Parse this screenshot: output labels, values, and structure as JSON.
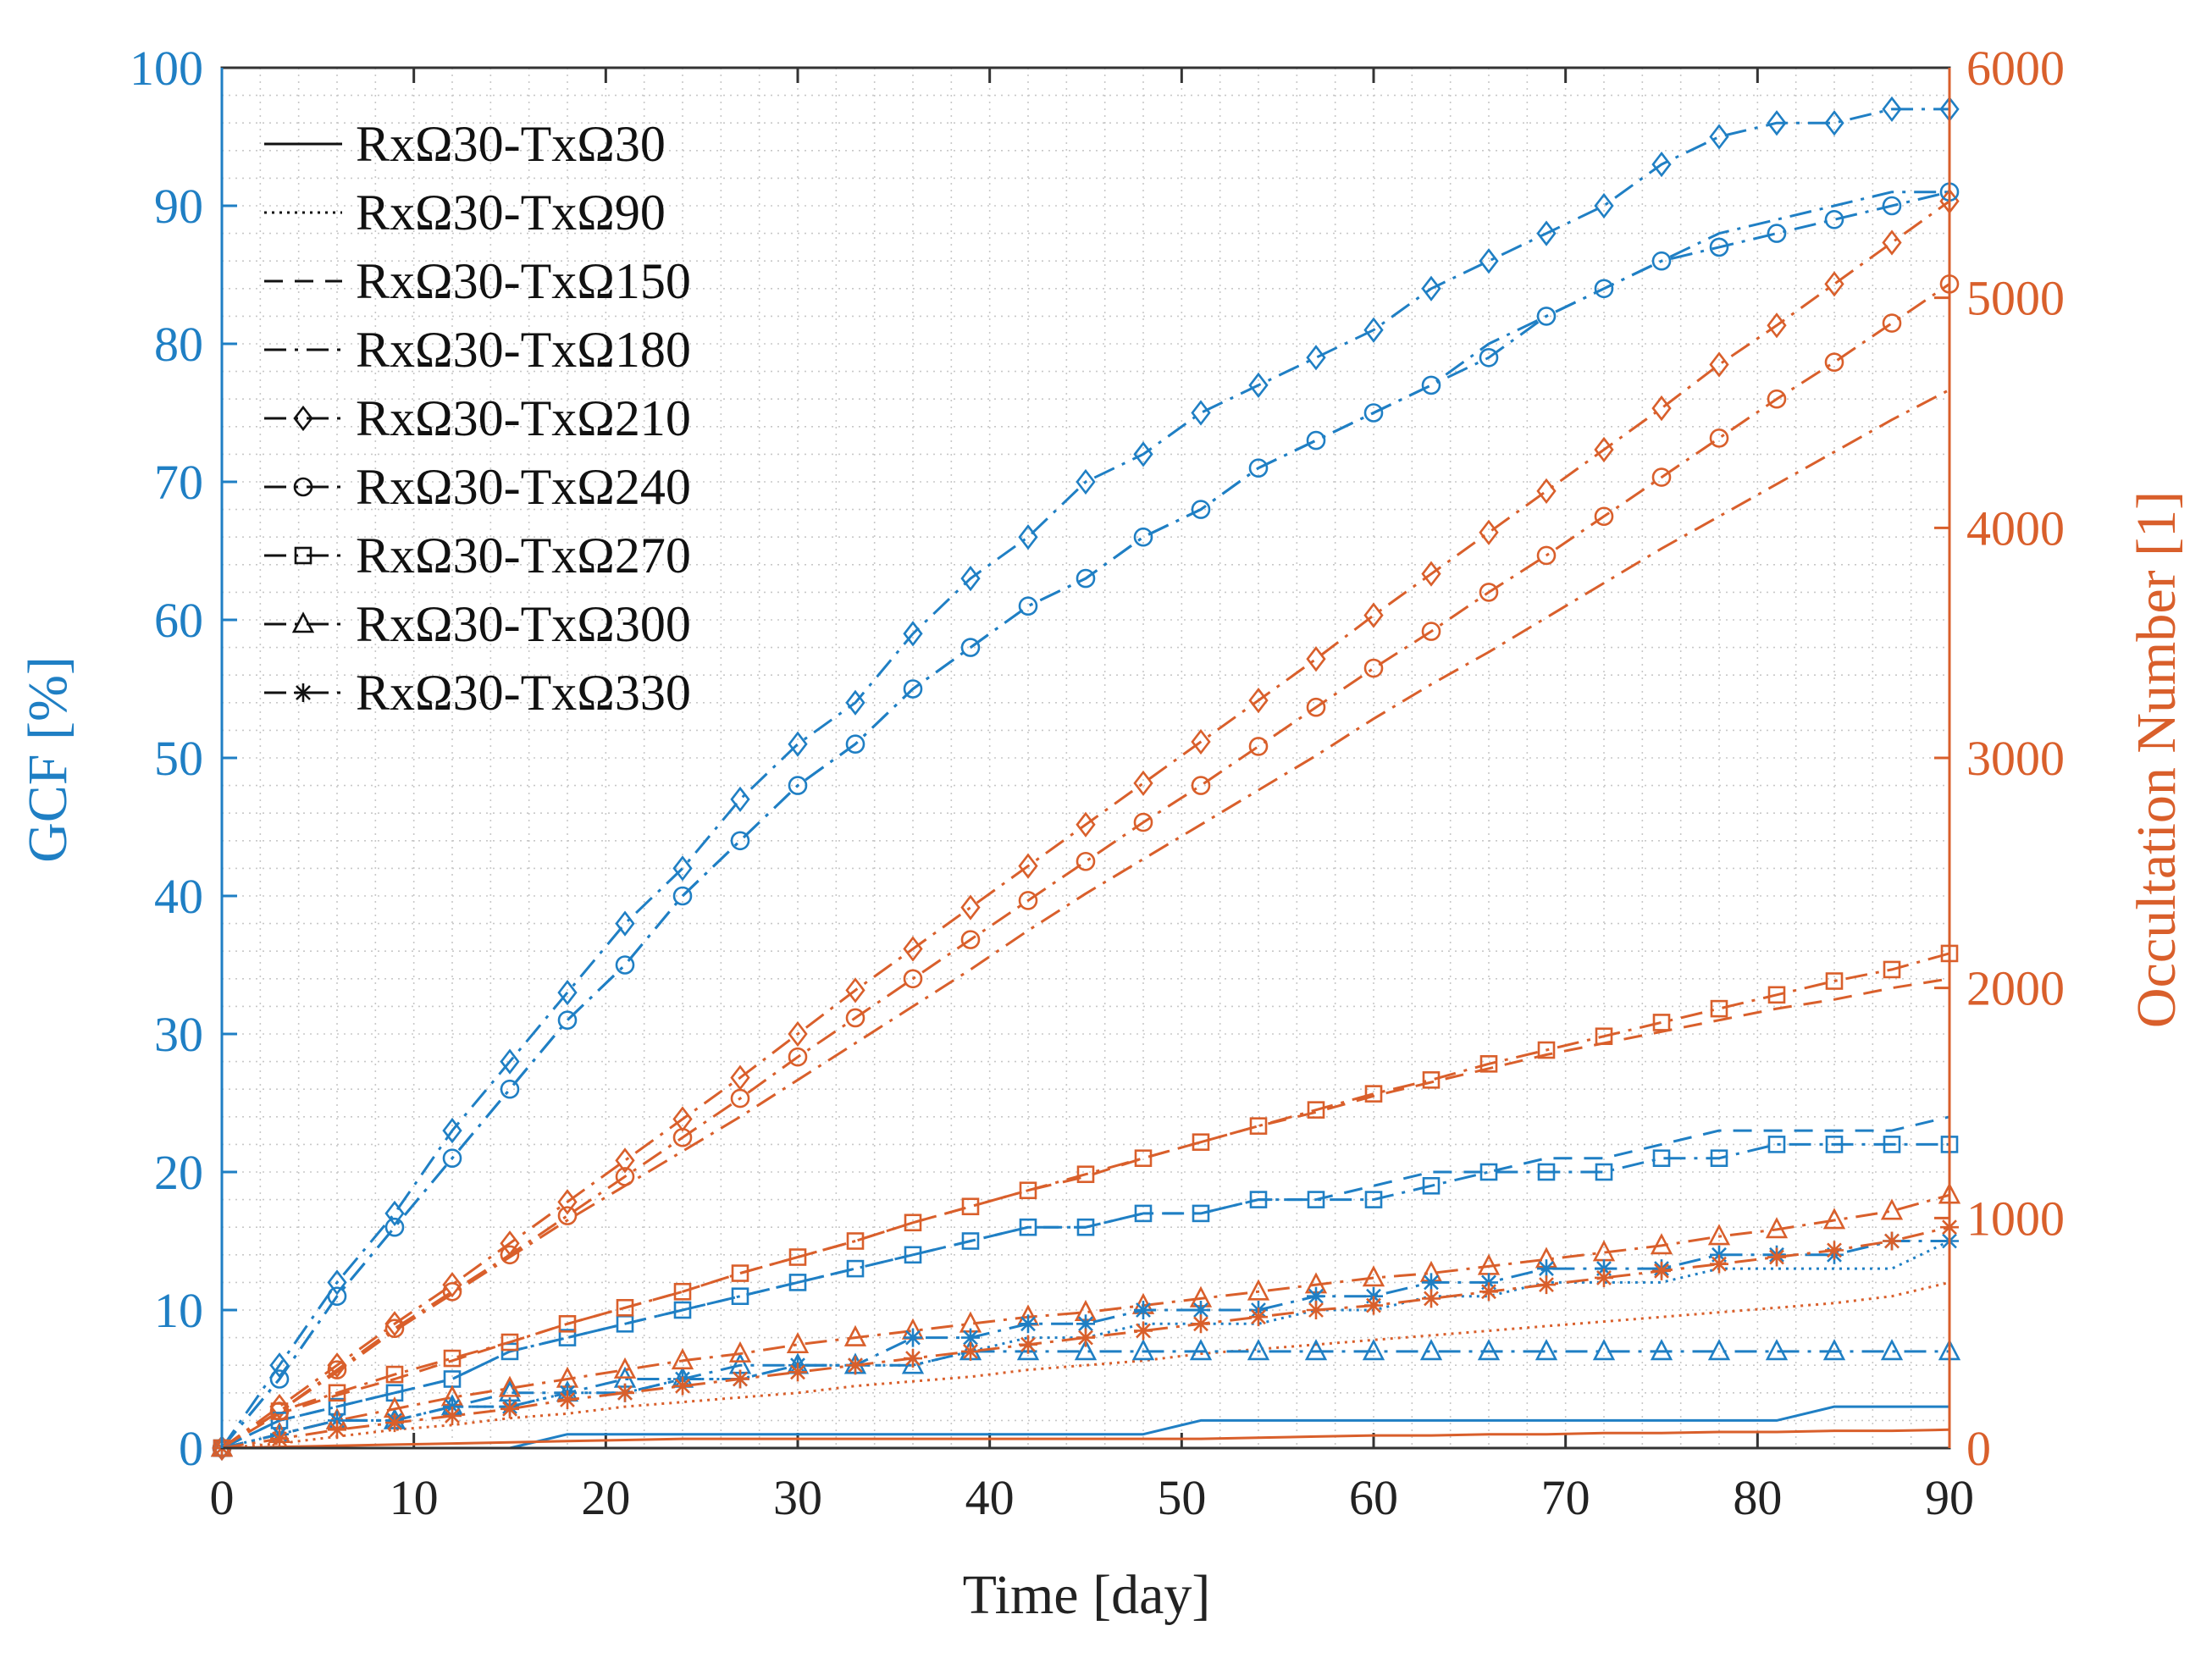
{
  "chart_data": {
    "type": "line",
    "xlabel": "Time [day]",
    "ylabel_left": "GCF [%]",
    "ylabel_right": "Occultation Number [1]",
    "xlim": [
      0,
      90
    ],
    "ylim_left": [
      0,
      100
    ],
    "ylim_right": [
      0,
      6000
    ],
    "xticks": [
      "0",
      "10",
      "20",
      "30",
      "40",
      "50",
      "60",
      "70",
      "80",
      "90"
    ],
    "yticks_left": [
      "0",
      "10",
      "20",
      "30",
      "40",
      "50",
      "60",
      "70",
      "80",
      "90",
      "100"
    ],
    "yticks_right": [
      "0",
      "1000",
      "2000",
      "3000",
      "4000",
      "5000",
      "6000"
    ],
    "grid": "minor dotted",
    "legend_position": "top-left",
    "colors": {
      "left": "#1f7fc4",
      "right": "#d95f2b"
    },
    "x": [
      0,
      3,
      6,
      9,
      12,
      15,
      18,
      21,
      24,
      27,
      30,
      33,
      36,
      39,
      42,
      45,
      48,
      51,
      54,
      57,
      60,
      63,
      66,
      69,
      72,
      75,
      78,
      81,
      84,
      87,
      90
    ],
    "series": [
      {
        "name": "RxΩ30-TxΩ30",
        "style": "solid",
        "marker": "none",
        "gcf": [
          0,
          0,
          0,
          0,
          0,
          0,
          1,
          1,
          1,
          1,
          1,
          1,
          1,
          1,
          1,
          1,
          1,
          2,
          2,
          2,
          2,
          2,
          2,
          2,
          2,
          2,
          2,
          2,
          3,
          3,
          3
        ],
        "occultation": [
          0,
          5,
          10,
          15,
          20,
          25,
          30,
          35,
          40,
          40,
          40,
          40,
          40,
          40,
          40,
          40,
          40,
          40,
          45,
          50,
          55,
          55,
          60,
          60,
          65,
          65,
          70,
          70,
          75,
          75,
          80
        ]
      },
      {
        "name": "RxΩ30-TxΩ90",
        "style": "dotted",
        "marker": "none",
        "gcf": [
          0,
          1,
          2,
          2,
          3,
          3,
          4,
          4,
          5,
          5,
          6,
          6,
          6,
          7,
          8,
          8,
          9,
          9,
          9,
          10,
          10,
          11,
          11,
          12,
          12,
          12,
          13,
          13,
          13,
          13,
          15
        ],
        "occultation": [
          0,
          20,
          50,
          80,
          100,
          130,
          150,
          180,
          200,
          220,
          240,
          270,
          290,
          310,
          340,
          360,
          380,
          410,
          430,
          450,
          470,
          490,
          510,
          530,
          550,
          570,
          590,
          610,
          630,
          660,
          720
        ]
      },
      {
        "name": "RxΩ30-TxΩ150",
        "style": "dashed",
        "marker": "none",
        "gcf": [
          0,
          2,
          3,
          4,
          5,
          7,
          8,
          9,
          10,
          11,
          12,
          13,
          14,
          15,
          16,
          16,
          17,
          17,
          18,
          18,
          19,
          20,
          20,
          21,
          21,
          22,
          23,
          23,
          23,
          23,
          24
        ],
        "occultation": [
          0,
          150,
          230,
          300,
          380,
          460,
          540,
          610,
          680,
          760,
          830,
          900,
          980,
          1050,
          1120,
          1180,
          1260,
          1330,
          1400,
          1460,
          1530,
          1590,
          1650,
          1710,
          1760,
          1810,
          1860,
          1910,
          1950,
          2000,
          2040
        ]
      },
      {
        "name": "RxΩ30-TxΩ180",
        "style": "dashdot",
        "marker": "none",
        "gcf": [
          0,
          5,
          11,
          16,
          21,
          26,
          31,
          35,
          40,
          44,
          48,
          51,
          55,
          58,
          61,
          63,
          66,
          68,
          71,
          73,
          75,
          77,
          80,
          82,
          84,
          86,
          88,
          89,
          90,
          91,
          91
        ],
        "occultation": [
          0,
          160,
          330,
          510,
          670,
          830,
          990,
          1140,
          1290,
          1440,
          1600,
          1760,
          1920,
          2080,
          2250,
          2410,
          2560,
          2710,
          2860,
          3010,
          3170,
          3320,
          3460,
          3610,
          3760,
          3910,
          4050,
          4190,
          4330,
          4470,
          4600
        ]
      },
      {
        "name": "RxΩ30-TxΩ210",
        "style": "dashdot",
        "marker": "diamond",
        "gcf": [
          0,
          6,
          12,
          17,
          23,
          28,
          33,
          38,
          42,
          47,
          51,
          54,
          59,
          63,
          66,
          70,
          72,
          75,
          77,
          79,
          81,
          84,
          86,
          88,
          90,
          93,
          95,
          96,
          96,
          97,
          97
        ],
        "occultation": [
          0,
          180,
          360,
          540,
          710,
          890,
          1070,
          1250,
          1430,
          1610,
          1800,
          1990,
          2170,
          2350,
          2530,
          2710,
          2890,
          3070,
          3250,
          3430,
          3620,
          3800,
          3980,
          4160,
          4340,
          4520,
          4710,
          4880,
          5060,
          5240,
          5420
        ]
      },
      {
        "name": "RxΩ30-TxΩ240",
        "style": "dashdot",
        "marker": "circle",
        "gcf": [
          0,
          5,
          11,
          16,
          21,
          26,
          31,
          35,
          40,
          44,
          48,
          51,
          55,
          58,
          61,
          63,
          66,
          68,
          71,
          73,
          75,
          77,
          79,
          82,
          84,
          86,
          87,
          88,
          89,
          90,
          91
        ],
        "occultation": [
          0,
          160,
          340,
          520,
          680,
          840,
          1010,
          1180,
          1350,
          1520,
          1700,
          1870,
          2040,
          2210,
          2380,
          2550,
          2720,
          2880,
          3050,
          3220,
          3390,
          3550,
          3720,
          3880,
          4050,
          4220,
          4390,
          4560,
          4720,
          4890,
          5060
        ]
      },
      {
        "name": "RxΩ30-TxΩ270",
        "style": "dashdot",
        "marker": "square",
        "gcf": [
          0,
          2,
          3,
          4,
          5,
          7,
          8,
          9,
          10,
          11,
          12,
          13,
          14,
          15,
          16,
          16,
          17,
          17,
          18,
          18,
          18,
          19,
          20,
          20,
          20,
          21,
          21,
          22,
          22,
          22,
          22
        ],
        "occultation": [
          0,
          160,
          240,
          320,
          390,
          460,
          540,
          610,
          680,
          760,
          830,
          900,
          980,
          1050,
          1120,
          1190,
          1260,
          1330,
          1400,
          1470,
          1540,
          1600,
          1670,
          1730,
          1790,
          1850,
          1910,
          1970,
          2030,
          2080,
          2150
        ]
      },
      {
        "name": "RxΩ30-TxΩ300",
        "style": "dashdot",
        "marker": "triangle",
        "gcf": [
          0,
          1,
          2,
          2,
          3,
          4,
          4,
          5,
          5,
          6,
          6,
          6,
          6,
          7,
          7,
          7,
          7,
          7,
          7,
          7,
          7,
          7,
          7,
          7,
          7,
          7,
          7,
          7,
          7,
          7,
          7
        ],
        "occultation": [
          0,
          60,
          120,
          170,
          220,
          260,
          300,
          340,
          380,
          410,
          450,
          480,
          510,
          540,
          570,
          590,
          620,
          650,
          680,
          710,
          740,
          760,
          790,
          820,
          850,
          880,
          920,
          950,
          990,
          1030,
          1100
        ]
      },
      {
        "name": "RxΩ30-TxΩ330",
        "style": "dashdot",
        "marker": "star",
        "gcf": [
          0,
          1,
          2,
          2,
          3,
          3,
          4,
          4,
          5,
          5,
          6,
          6,
          8,
          8,
          9,
          9,
          10,
          10,
          10,
          11,
          11,
          12,
          12,
          13,
          13,
          13,
          14,
          14,
          14,
          15,
          15
        ],
        "occultation": [
          0,
          40,
          80,
          110,
          140,
          170,
          210,
          240,
          270,
          300,
          330,
          360,
          390,
          420,
          450,
          480,
          510,
          540,
          570,
          600,
          620,
          650,
          680,
          710,
          740,
          770,
          800,
          830,
          860,
          900,
          960
        ]
      }
    ]
  }
}
